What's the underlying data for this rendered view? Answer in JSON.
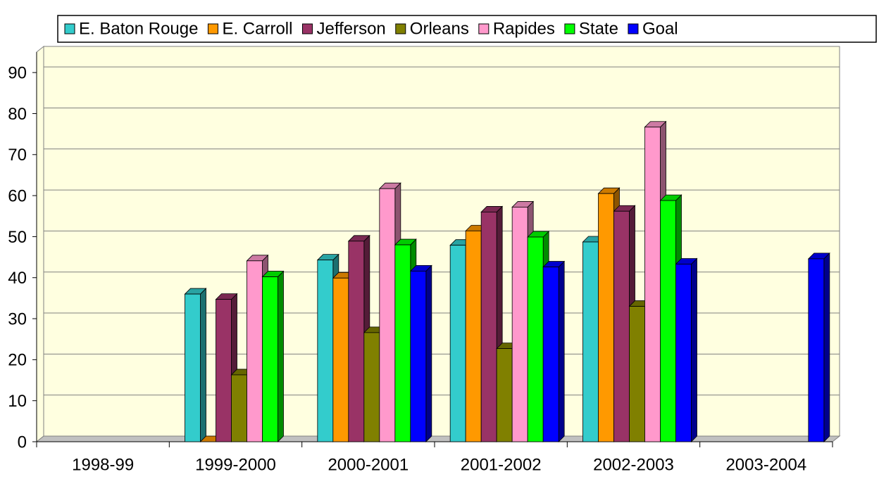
{
  "chart_data": {
    "type": "bar3d",
    "categories": [
      "1998-99",
      "1999-2000",
      "2000-2001",
      "2001-2002",
      "2002-2003",
      "2003-2004"
    ],
    "series": [
      {
        "name": "E. Baton Rouge",
        "color": "#33cccc",
        "values": [
          null,
          36,
          44.3,
          47.9,
          48.7,
          null
        ]
      },
      {
        "name": "E. Carroll",
        "color": "#ff9900",
        "values": [
          null,
          0,
          39.9,
          51.4,
          60.5,
          null
        ]
      },
      {
        "name": "Jefferson",
        "color": "#993366",
        "values": [
          null,
          34.7,
          48.9,
          56,
          56.2,
          null
        ]
      },
      {
        "name": "Orleans",
        "color": "#808000",
        "values": [
          null,
          16.3,
          26.6,
          22.7,
          33,
          null
        ]
      },
      {
        "name": "Rapides",
        "color": "#ff99cc",
        "values": [
          null,
          44.1,
          61.7,
          57.2,
          76.7,
          null
        ]
      },
      {
        "name": "State",
        "color": "#00ff00",
        "label_color": "#00ff00",
        "values": [
          null,
          40.2,
          48,
          49.9,
          58.8,
          null
        ]
      },
      {
        "name": "Goal",
        "color": "#0000ff",
        "label_color": "#0000ff",
        "values": [
          null,
          null,
          41.6,
          42.6,
          43.3,
          44.6
        ]
      }
    ],
    "ylim": [
      0,
      95
    ],
    "yticks": [
      0,
      10,
      20,
      30,
      40,
      50,
      60,
      70,
      80,
      90
    ],
    "grid": true,
    "legend": "top"
  }
}
